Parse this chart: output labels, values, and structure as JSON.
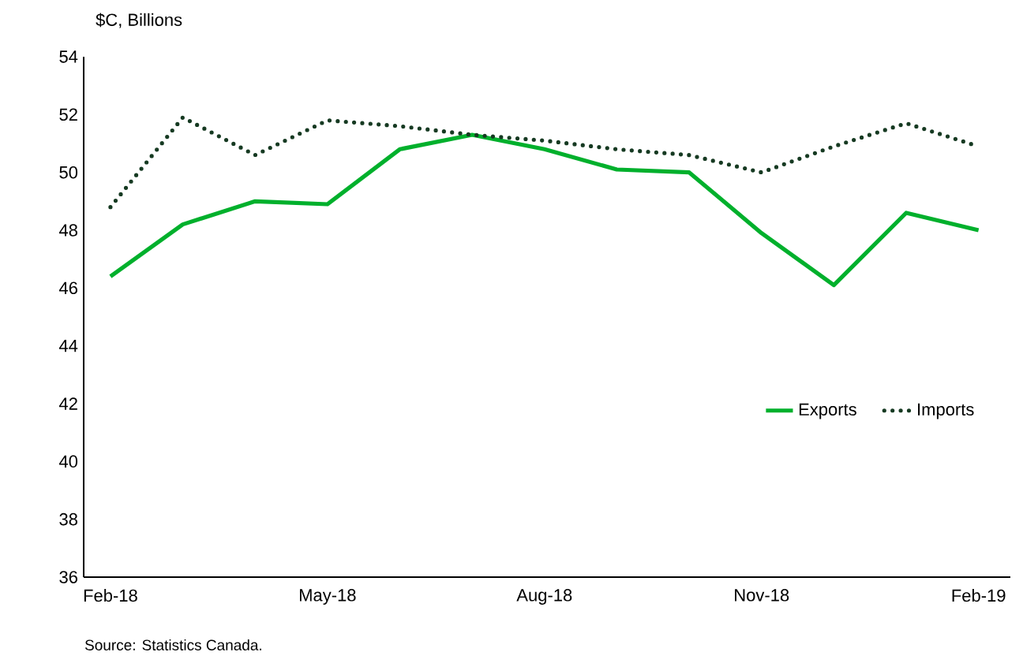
{
  "chart_data": {
    "type": "line",
    "ylabel": "$C, Billions",
    "categories": [
      "Feb-18",
      null,
      null,
      "May-18",
      null,
      null,
      "Aug-18",
      null,
      null,
      "Nov-18",
      null,
      null,
      "Feb-19"
    ],
    "series": [
      {
        "name": "Exports",
        "color": "#00b02c",
        "line_style": "solid",
        "values": [
          46.4,
          48.2,
          49.0,
          48.9,
          50.8,
          51.3,
          50.8,
          50.1,
          50.0,
          47.9,
          46.1,
          48.6,
          48.0
        ]
      },
      {
        "name": "Imports",
        "color": "#163a22",
        "line_style": "dotted",
        "values": [
          48.8,
          51.9,
          50.6,
          51.8,
          51.6,
          51.3,
          51.1,
          50.8,
          50.6,
          50.0,
          50.9,
          51.7,
          50.9
        ]
      }
    ],
    "ylim": [
      36,
      54
    ],
    "yticks": [
      36,
      38,
      40,
      42,
      44,
      46,
      48,
      50,
      52,
      54
    ],
    "grid": false,
    "legend": "bottom right",
    "marker": "none",
    "annotations": [
      "Source: Statistics Canada."
    ]
  }
}
